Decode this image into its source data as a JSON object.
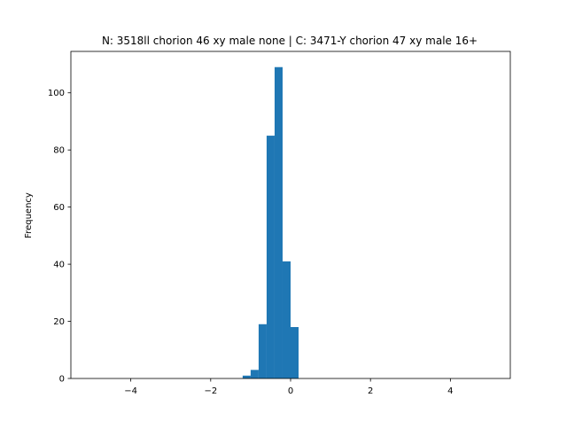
{
  "chart_data": {
    "type": "bar",
    "title": "N: 3518ll chorion 46 xy male none | C: 3471-Y chorion 47 xy male 16+",
    "xlabel": "",
    "ylabel": "Frequency",
    "xlim": [
      -5.5,
      5.5
    ],
    "ylim": [
      0,
      114.5
    ],
    "xticks": [
      -4,
      -2,
      0,
      2,
      4
    ],
    "xtick_labels": [
      "−4",
      "−2",
      "0",
      "2",
      "4"
    ],
    "yticks": [
      0,
      20,
      40,
      60,
      80,
      100
    ],
    "ytick_labels": [
      "0",
      "20",
      "40",
      "60",
      "80",
      "100"
    ],
    "bin_width": 0.2,
    "bins": [
      {
        "x0": -1.2,
        "x1": -1.0,
        "value": 1
      },
      {
        "x0": -1.0,
        "x1": -0.8,
        "value": 3
      },
      {
        "x0": -0.8,
        "x1": -0.6,
        "value": 19
      },
      {
        "x0": -0.6,
        "x1": -0.4,
        "value": 85
      },
      {
        "x0": -0.4,
        "x1": -0.2,
        "value": 109
      },
      {
        "x0": -0.2,
        "x1": 0.0,
        "value": 41
      },
      {
        "x0": 0.0,
        "x1": 0.2,
        "value": 18
      }
    ],
    "grid": false,
    "legend": "none",
    "bar_color": "#1f77b4"
  }
}
